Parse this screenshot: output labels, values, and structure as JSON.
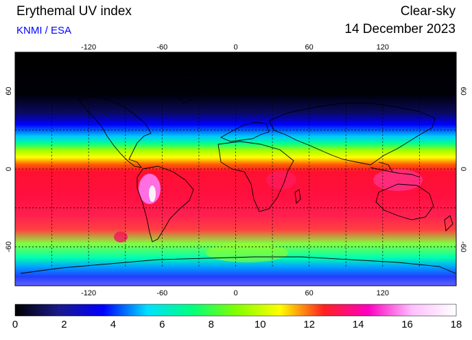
{
  "header": {
    "title": "Erythemal UV index",
    "subtitle": "KNMI / ESA",
    "mode": "Clear-sky",
    "date": "14 December 2023"
  },
  "map": {
    "projection": "equirectangular",
    "lon_range": [
      -180,
      180
    ],
    "lat_range": [
      -90,
      90
    ],
    "lon_ticks": [
      -120,
      -60,
      0,
      60,
      120
    ],
    "lat_ticks": [
      60,
      0,
      -60
    ],
    "gridlines_lon": [
      -150,
      -120,
      -90,
      -60,
      -30,
      0,
      30,
      60,
      90,
      120,
      150
    ],
    "gridlines_lat": [
      60,
      30,
      0,
      -30,
      -60
    ],
    "grid": "dotted",
    "field": "clear-sky erythemal UV index (northern-hemisphere winter, maximum in southern tropics)"
  },
  "colorbar": {
    "min": 0,
    "max": 18,
    "ticks": [
      "0",
      "2",
      "4",
      "6",
      "8",
      "10",
      "12",
      "14",
      "16",
      "18"
    ],
    "colors": [
      "#000000",
      "#1a1a8c",
      "#0000ff",
      "#00e0ff",
      "#00ff80",
      "#80ff00",
      "#ffff00",
      "#ff2020",
      "#ff00c0",
      "#ffc0ff",
      "#ffffff"
    ]
  }
}
